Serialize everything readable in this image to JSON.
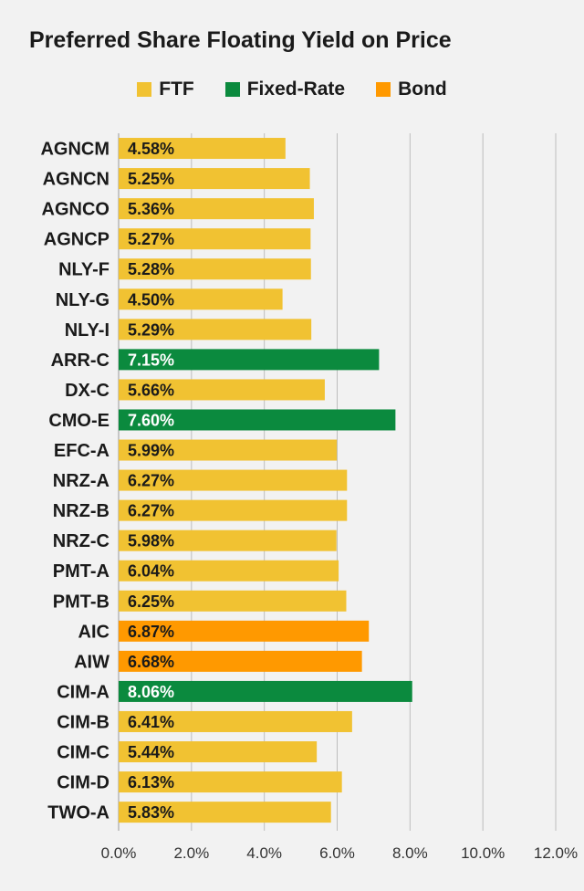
{
  "chart_data": {
    "type": "bar",
    "orientation": "horizontal",
    "title": "Preferred Share Floating Yield on Price",
    "xlabel": "",
    "ylabel": "",
    "xlim": [
      0,
      12
    ],
    "xticks": [
      "0.0%",
      "2.0%",
      "4.0%",
      "6.0%",
      "8.0%",
      "10.0%",
      "12.0%"
    ],
    "grid": "vertical",
    "legend_position": "top",
    "legend": [
      {
        "name": "FTF",
        "color": "#f1c232"
      },
      {
        "name": "Fixed-Rate",
        "color": "#0b8a3e"
      },
      {
        "name": "Bond",
        "color": "#ff9900"
      }
    ],
    "categories": [
      "AGNCM",
      "AGNCN",
      "AGNCO",
      "AGNCP",
      "NLY-F",
      "NLY-G",
      "NLY-I",
      "ARR-C",
      "DX-C",
      "CMO-E",
      "EFC-A",
      "NRZ-A",
      "NRZ-B",
      "NRZ-C",
      "PMT-A",
      "PMT-B",
      "AIC",
      "AIW",
      "CIM-A",
      "CIM-B",
      "CIM-C",
      "CIM-D",
      "TWO-A"
    ],
    "values": [
      4.58,
      5.25,
      5.36,
      5.27,
      5.28,
      4.5,
      5.29,
      7.15,
      5.66,
      7.6,
      5.99,
      6.27,
      6.27,
      5.98,
      6.04,
      6.25,
      6.87,
      6.68,
      8.06,
      6.41,
      5.44,
      6.13,
      5.83
    ],
    "labels": [
      "4.58%",
      "5.25%",
      "5.36%",
      "5.27%",
      "5.28%",
      "4.50%",
      "5.29%",
      "7.15%",
      "5.66%",
      "7.60%",
      "5.99%",
      "6.27%",
      "6.27%",
      "5.98%",
      "6.04%",
      "6.25%",
      "6.87%",
      "6.68%",
      "8.06%",
      "6.41%",
      "5.44%",
      "6.13%",
      "5.83%"
    ],
    "series_type": [
      "FTF",
      "FTF",
      "FTF",
      "FTF",
      "FTF",
      "FTF",
      "FTF",
      "Fixed-Rate",
      "FTF",
      "Fixed-Rate",
      "FTF",
      "FTF",
      "FTF",
      "FTF",
      "FTF",
      "FTF",
      "Bond",
      "Bond",
      "Fixed-Rate",
      "FTF",
      "FTF",
      "FTF",
      "FTF"
    ]
  }
}
